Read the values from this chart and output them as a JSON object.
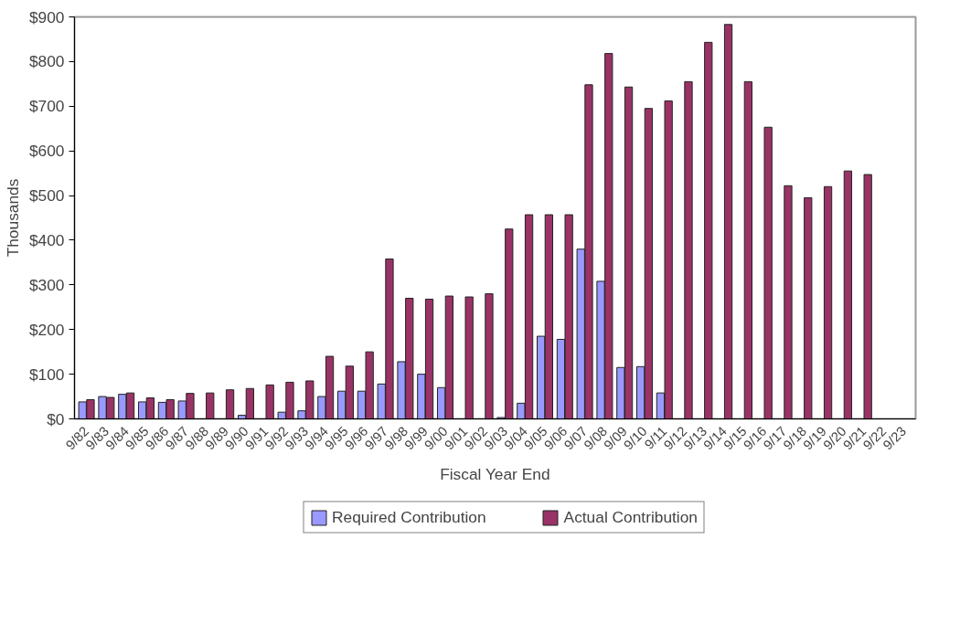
{
  "chart_data": {
    "type": "bar",
    "xlabel": "Fiscal Year End",
    "ylabel": "Thousands",
    "categories": [
      "9/82",
      "9/83",
      "9/84",
      "9/85",
      "9/86",
      "9/87",
      "9/88",
      "9/89",
      "9/90",
      "9/91",
      "9/92",
      "9/93",
      "9/94",
      "9/95",
      "9/96",
      "9/97",
      "9/98",
      "9/99",
      "9/00",
      "9/01",
      "9/02",
      "9/03",
      "9/04",
      "9/05",
      "9/06",
      "9/07",
      "9/08",
      "9/09",
      "9/10",
      "9/11",
      "9/12",
      "9/13",
      "9/14",
      "9/15",
      "9/16",
      "9/17",
      "9/18",
      "9/19",
      "9/20",
      "9/21",
      "9/22",
      "9/23"
    ],
    "series": [
      {
        "name": "Required Contribution",
        "color": "#9999ff",
        "values": [
          38,
          50,
          55,
          38,
          37,
          40,
          null,
          null,
          8,
          null,
          15,
          18,
          50,
          62,
          62,
          78,
          128,
          100,
          70,
          null,
          null,
          3,
          35,
          185,
          178,
          380,
          308,
          115,
          117,
          58,
          null,
          null,
          null,
          null,
          null,
          null,
          null,
          null,
          null,
          null,
          null,
          null
        ]
      },
      {
        "name": "Actual Contribution",
        "color": "#993366",
        "values": [
          43,
          48,
          58,
          47,
          43,
          57,
          58,
          65,
          68,
          76,
          82,
          85,
          140,
          118,
          150,
          358,
          270,
          268,
          275,
          273,
          280,
          425,
          457,
          457,
          457,
          748,
          818,
          743,
          695,
          712,
          755,
          843,
          883,
          755,
          653,
          522,
          495,
          520,
          555,
          547,
          null,
          null
        ]
      }
    ],
    "ylim": [
      0,
      900
    ],
    "yticks": [
      {
        "value": 0,
        "label": "$0"
      },
      {
        "value": 100,
        "label": "$100"
      },
      {
        "value": 200,
        "label": "$200"
      },
      {
        "value": 300,
        "label": "$300"
      },
      {
        "value": 400,
        "label": "$400"
      },
      {
        "value": 500,
        "label": "$500"
      },
      {
        "value": 600,
        "label": "$600"
      },
      {
        "value": 700,
        "label": "$700"
      },
      {
        "value": 800,
        "label": "$800"
      },
      {
        "value": 900,
        "label": "$900"
      }
    ],
    "grid": false,
    "legend": "bottom"
  }
}
